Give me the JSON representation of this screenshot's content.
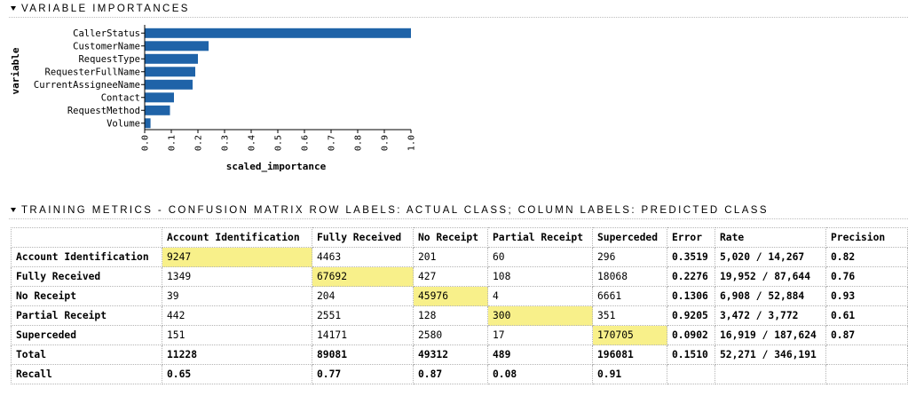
{
  "importance_section": {
    "title": "VARIABLE IMPORTANCES"
  },
  "metrics_section": {
    "title": "TRAINING METRICS - CONFUSION MATRIX ROW LABELS: ACTUAL CLASS; COLUMN LABELS: PREDICTED CLASS"
  },
  "chart_data": {
    "type": "bar",
    "orientation": "horizontal",
    "categories": [
      "CallerStatus",
      "CustomerName",
      "RequestType",
      "RequesterFullName",
      "CurrentAssigneeName",
      "Contact",
      "RequestMethod",
      "Volume"
    ],
    "values": [
      1.0,
      0.24,
      0.2,
      0.19,
      0.18,
      0.11,
      0.095,
      0.022
    ],
    "xlabel": "scaled_importance",
    "ylabel": "variable",
    "xlim": [
      0,
      1.0
    ],
    "xticks": [
      "0.0",
      "0.1",
      "0.2",
      "0.3",
      "0.4",
      "0.5",
      "0.6",
      "0.7",
      "0.8",
      "0.9",
      "1.0"
    ],
    "bar_color": "#1f63a8"
  },
  "confusion_matrix": {
    "headers": [
      "",
      "Account Identification",
      "Fully Received",
      "No Receipt",
      "Partial Receipt",
      "Superceded",
      "Error",
      "Rate",
      "Precision"
    ],
    "rows": [
      {
        "label": "Account Identification",
        "cells": [
          "9247",
          "4463",
          "201",
          "60",
          "296"
        ],
        "error": "0.3519",
        "rate": "5,020 / 14,267",
        "precision": "0.82"
      },
      {
        "label": "Fully Received",
        "cells": [
          "1349",
          "67692",
          "427",
          "108",
          "18068"
        ],
        "error": "0.2276",
        "rate": "19,952 / 87,644",
        "precision": "0.76"
      },
      {
        "label": "No Receipt",
        "cells": [
          "39",
          "204",
          "45976",
          "4",
          "6661"
        ],
        "error": "0.1306",
        "rate": "6,908 / 52,884",
        "precision": "0.93"
      },
      {
        "label": "Partial Receipt",
        "cells": [
          "442",
          "2551",
          "128",
          "300",
          "351"
        ],
        "error": "0.9205",
        "rate": "3,472 / 3,772",
        "precision": "0.61"
      },
      {
        "label": "Superceded",
        "cells": [
          "151",
          "14171",
          "2580",
          "17",
          "170705"
        ],
        "error": "0.0902",
        "rate": "16,919 / 187,624",
        "precision": "0.87"
      }
    ],
    "total": {
      "label": "Total",
      "cells": [
        "11228",
        "89081",
        "49312",
        "489",
        "196081"
      ],
      "error": "0.1510",
      "rate": "52,271 / 346,191",
      "precision": ""
    },
    "recall": {
      "label": "Recall",
      "cells": [
        "0.65",
        "0.77",
        "0.87",
        "0.08",
        "0.91"
      ],
      "error": "",
      "rate": "",
      "precision": ""
    },
    "highlight_color": "#f8f08a"
  }
}
